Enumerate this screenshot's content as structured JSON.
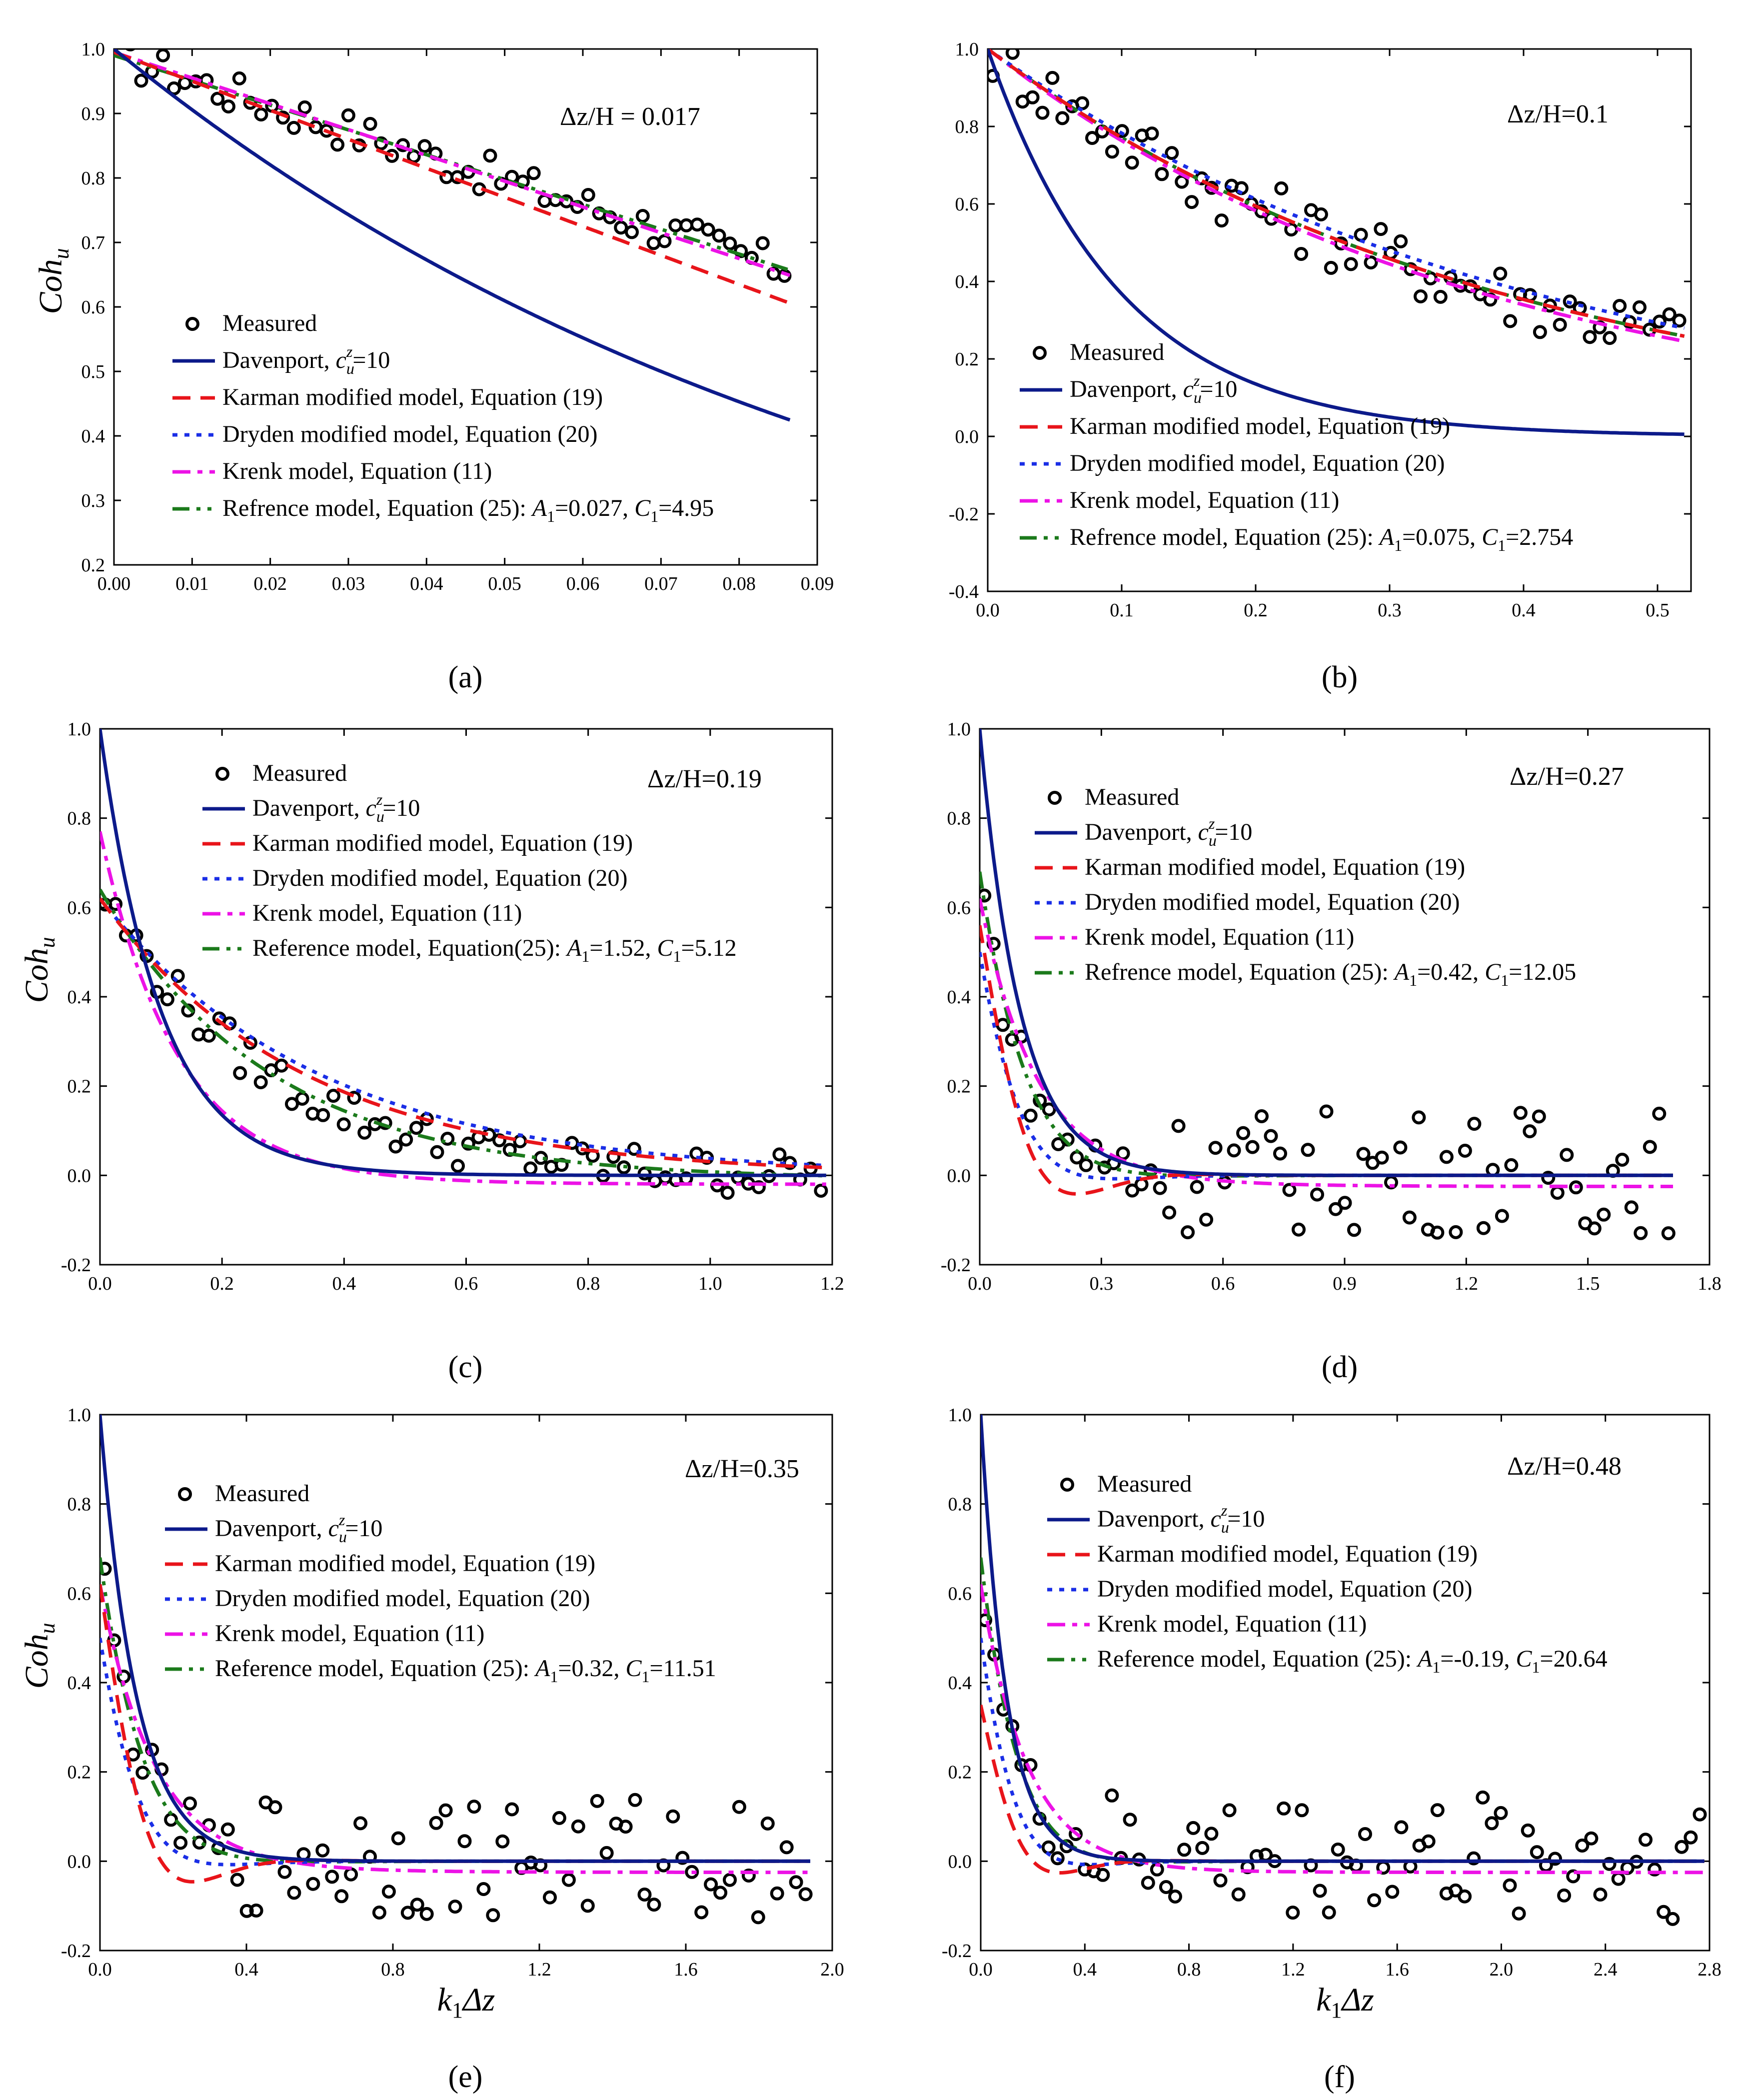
{
  "legend_labels": {
    "measured": "Measured",
    "davenport": "Davenport, ",
    "davenport_c": "c",
    "davenport_sub": "u",
    "davenport_sup": "z",
    "davenport_eq": "=10",
    "karman": "Karman modified model, Equation (19)",
    "dryden": "Dryden modified model, Equation (20)",
    "krenk": "Krenk model, Equation (11)"
  },
  "axis_labels": {
    "y_main": "Coh",
    "y_sub": "u",
    "x_k": "k",
    "x_sub": "1",
    "x_rest": "Δz"
  },
  "colors": {
    "davenport": "#0c1a8a",
    "karman": "#e8141a",
    "dryden": "#1a2ee6",
    "krenk": "#ec12e6",
    "reference": "#1b7a1b",
    "measured": "#000000"
  },
  "chart_data": [
    {
      "type": "scatter",
      "panel_label": "(a)",
      "dz_label": "Δz/H = 0.017",
      "xlim": [
        0,
        0.09
      ],
      "ylim": [
        0.2,
        1.0
      ],
      "xticks": [
        "0.00",
        "0.01",
        "0.02",
        "0.03",
        "0.04",
        "0.05",
        "0.06",
        "0.07",
        "0.08",
        "0.09"
      ],
      "yticks": [
        "0.2",
        "0.3",
        "0.4",
        "0.5",
        "0.6",
        "0.7",
        "0.8",
        "0.9",
        "1.0"
      ],
      "xlabel_visible": false,
      "reference_prefix": "Refrence model, Equation (25): ",
      "reference_A": "=0.027, ",
      "reference_C": "=4.95",
      "params": {
        "x_max": 0.0865,
        "dav_k": 9.9,
        "kar_slope": 4.5,
        "dry_slope": 4.65,
        "kre_slope": 4.0,
        "ref_slope": 3.85,
        "noise": 0.03,
        "n_points": 62
      },
      "series_names": [
        "Measured",
        "Davenport",
        "Karman modified model",
        "Dryden modified model",
        "Krenk model",
        "Reference model"
      ]
    },
    {
      "type": "scatter",
      "panel_label": "(b)",
      "dz_label": "Δz/H=0.1",
      "xlim": [
        0,
        0.525
      ],
      "ylim": [
        -0.4,
        1.0
      ],
      "xticks": [
        "0.0",
        "0.1",
        "0.2",
        "0.3",
        "0.4",
        "0.5"
      ],
      "yticks": [
        "-0.4",
        "-0.2",
        "0.0",
        "0.2",
        "0.4",
        "0.6",
        "0.8",
        "1.0"
      ],
      "xlabel_visible": false,
      "reference_prefix": "Refrence model, Equation (25): ",
      "reference_A": "=0.075, ",
      "reference_C": "=2.754",
      "params": {
        "x_max": 0.52,
        "dav_k": 10.0,
        "kar_a": 2.6,
        "dry_a": 2.45,
        "kre_a": 2.7,
        "ref_a": 2.6,
        "noise": 0.08,
        "n_points": 70
      },
      "series_names": [
        "Measured",
        "Davenport",
        "Karman modified model",
        "Dryden modified model",
        "Krenk model",
        "Reference model"
      ]
    },
    {
      "type": "scatter",
      "panel_label": "(c)",
      "dz_label": "Δz/H=0.19",
      "xlim": [
        0,
        1.2
      ],
      "ylim": [
        -0.2,
        1.0
      ],
      "xticks": [
        "0.0",
        "0.2",
        "0.4",
        "0.6",
        "0.8",
        "1.0",
        "1.2"
      ],
      "yticks": [
        "-0.2",
        "0.0",
        "0.2",
        "0.4",
        "0.6",
        "0.8",
        "1.0"
      ],
      "xlabel_visible": false,
      "reference_prefix": "Reference model, Equation(25): ",
      "reference_A": "=1.52, ",
      "reference_C": "=5.12",
      "params": {
        "x_max": 1.19,
        "dav_k": 10.0,
        "start": 0.62,
        "kar_a": 3.0,
        "dry_a": 2.8,
        "kre_start": 0.77,
        "kre_a": 8.0,
        "ref_a": 3.6,
        "noise": 0.05,
        "n_points": 70
      },
      "series_names": [
        "Measured",
        "Davenport",
        "Karman modified model",
        "Dryden modified model",
        "Krenk model",
        "Reference model"
      ]
    },
    {
      "type": "scatter",
      "panel_label": "(d)",
      "dz_label": "Δz/H=0.27",
      "xlim": [
        0,
        1.8
      ],
      "ylim": [
        -0.2,
        1.0
      ],
      "xticks": [
        "0.0",
        "0.3",
        "0.6",
        "0.9",
        "1.2",
        "1.5",
        "1.8"
      ],
      "yticks": [
        "-0.2",
        "0.0",
        "0.2",
        "0.4",
        "0.6",
        "0.8",
        "1.0"
      ],
      "xlabel_visible": false,
      "reference_prefix": "Refrence model, Equation (25): ",
      "reference_A": "=0.42, ",
      "reference_C": "=12.05",
      "params": {
        "x_max": 1.71,
        "dav_k": 10.0,
        "noise": 0.07,
        "n_points": 75
      },
      "series_names": [
        "Measured",
        "Davenport",
        "Karman modified model",
        "Dryden modified model",
        "Krenk model",
        "Reference model"
      ]
    },
    {
      "type": "scatter",
      "panel_label": "(e)",
      "dz_label": "Δz/H=0.35",
      "xlim": [
        0,
        2.0
      ],
      "ylim": [
        -0.2,
        1.0
      ],
      "xticks": [
        "0.0",
        "0.4",
        "0.8",
        "1.2",
        "1.6",
        "2.0"
      ],
      "yticks": [
        "-0.2",
        "0.0",
        "0.2",
        "0.4",
        "0.6",
        "0.8",
        "1.0"
      ],
      "xlabel_visible": true,
      "reference_prefix": "Reference model, Equation (25): ",
      "reference_A": "=0.32, ",
      "reference_C": "=11.51",
      "params": {
        "x_max": 1.94,
        "dav_k": 10.0,
        "noise": 0.07,
        "n_points": 75
      },
      "series_names": [
        "Measured",
        "Davenport",
        "Karman modified model",
        "Dryden modified model",
        "Krenk model",
        "Reference model"
      ]
    },
    {
      "type": "scatter",
      "panel_label": "(f)",
      "dz_label": "Δz/H=0.48",
      "xlim": [
        0,
        2.8
      ],
      "ylim": [
        -0.2,
        1.0
      ],
      "xticks": [
        "0.0",
        "0.4",
        "0.8",
        "1.2",
        "1.6",
        "2.0",
        "2.4",
        "2.8"
      ],
      "yticks": [
        "-0.2",
        "0.0",
        "0.2",
        "0.4",
        "0.6",
        "0.8",
        "1.0"
      ],
      "xlabel_visible": true,
      "reference_prefix": "Reference model, Equation (25): ",
      "reference_A": "=-0.19, ",
      "reference_C": "=20.64",
      "params": {
        "x_max": 2.78,
        "dav_k": 10.0,
        "noise": 0.07,
        "n_points": 80
      },
      "series_names": [
        "Measured",
        "Davenport",
        "Karman modified model",
        "Dryden modified model",
        "Krenk model",
        "Reference model"
      ]
    }
  ]
}
